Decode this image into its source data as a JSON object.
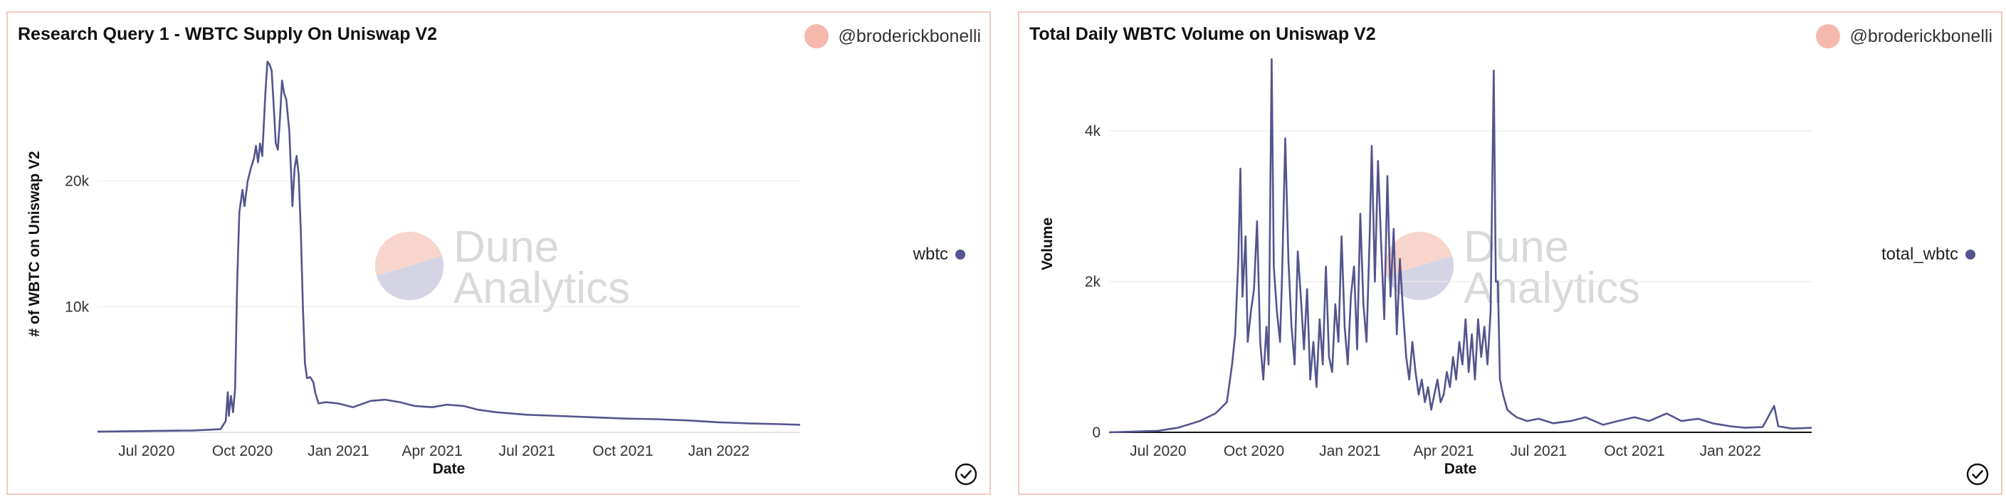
{
  "panels": [
    {
      "title": "Research Query 1 - WBTC Supply On Uniswap V2",
      "author": "@broderickbonelli",
      "watermark": [
        "Dune",
        "Analytics"
      ]
    },
    {
      "title": "Total Daily WBTC Volume on Uniswap V2",
      "author": "@broderickbonelli",
      "watermark": [
        "Dune",
        "Analytics"
      ]
    }
  ],
  "chart_data": [
    {
      "type": "line",
      "xlabel": "Date",
      "ylabel": "# of WBTC on Uniswap V2",
      "x_ticks": [
        "Jul 2020",
        "Oct 2020",
        "Jan 2021",
        "Apr 2021",
        "Jul 2021",
        "Oct 2021",
        "Jan 2022"
      ],
      "y_ticks": [
        "10k",
        "20k"
      ],
      "ylim": [
        0,
        30000
      ],
      "xlim": [
        "2020-05-15",
        "2022-03-20"
      ],
      "grid": true,
      "legend_position": "right",
      "series": [
        {
          "name": "wbtc",
          "color": "#54548e",
          "points": [
            [
              "2020-05-15",
              50
            ],
            [
              "2020-07-01",
              100
            ],
            [
              "2020-08-15",
              150
            ],
            [
              "2020-09-10",
              250
            ],
            [
              "2020-09-15",
              900
            ],
            [
              "2020-09-17",
              3200
            ],
            [
              "2020-09-18",
              1300
            ],
            [
              "2020-09-20",
              2900
            ],
            [
              "2020-09-22",
              1600
            ],
            [
              "2020-09-24",
              3500
            ],
            [
              "2020-09-26",
              12000
            ],
            [
              "2020-09-28",
              17500
            ],
            [
              "2020-10-01",
              19300
            ],
            [
              "2020-10-03",
              18000
            ],
            [
              "2020-10-06",
              20000
            ],
            [
              "2020-10-09",
              21000
            ],
            [
              "2020-10-12",
              21800
            ],
            [
              "2020-10-14",
              22800
            ],
            [
              "2020-10-16",
              21500
            ],
            [
              "2020-10-18",
              23000
            ],
            [
              "2020-10-20",
              22000
            ],
            [
              "2020-10-23",
              27000
            ],
            [
              "2020-10-25",
              29500
            ],
            [
              "2020-10-27",
              29300
            ],
            [
              "2020-10-29",
              28800
            ],
            [
              "2020-10-31",
              26000
            ],
            [
              "2020-11-02",
              23000
            ],
            [
              "2020-11-04",
              22500
            ],
            [
              "2020-11-06",
              25000
            ],
            [
              "2020-11-08",
              28000
            ],
            [
              "2020-11-10",
              27000
            ],
            [
              "2020-11-12",
              26500
            ],
            [
              "2020-11-15",
              24000
            ],
            [
              "2020-11-17",
              20000
            ],
            [
              "2020-11-18",
              18000
            ],
            [
              "2020-11-20",
              21000
            ],
            [
              "2020-11-22",
              22000
            ],
            [
              "2020-11-24",
              20500
            ],
            [
              "2020-11-26",
              16000
            ],
            [
              "2020-11-28",
              10000
            ],
            [
              "2020-11-30",
              5500
            ],
            [
              "2020-12-02",
              4300
            ],
            [
              "2020-12-05",
              4400
            ],
            [
              "2020-12-08",
              4000
            ],
            [
              "2020-12-10",
              3100
            ],
            [
              "2020-12-13",
              2300
            ],
            [
              "2020-12-20",
              2400
            ],
            [
              "2021-01-01",
              2300
            ],
            [
              "2021-01-15",
              2000
            ],
            [
              "2021-02-01",
              2500
            ],
            [
              "2021-02-15",
              2600
            ],
            [
              "2021-03-01",
              2400
            ],
            [
              "2021-03-15",
              2100
            ],
            [
              "2021-04-01",
              2000
            ],
            [
              "2021-04-15",
              2200
            ],
            [
              "2021-05-01",
              2100
            ],
            [
              "2021-05-15",
              1800
            ],
            [
              "2021-06-01",
              1600
            ],
            [
              "2021-07-01",
              1400
            ],
            [
              "2021-08-01",
              1300
            ],
            [
              "2021-09-01",
              1200
            ],
            [
              "2021-10-01",
              1100
            ],
            [
              "2021-11-01",
              1050
            ],
            [
              "2021-12-01",
              950
            ],
            [
              "2022-01-01",
              800
            ],
            [
              "2022-02-01",
              700
            ],
            [
              "2022-03-01",
              650
            ],
            [
              "2022-03-20",
              600
            ]
          ]
        }
      ]
    },
    {
      "type": "line",
      "xlabel": "Date",
      "ylabel": "Volume",
      "x_ticks": [
        "Jul 2020",
        "Oct 2020",
        "Jan 2021",
        "Apr 2021",
        "Jul 2021",
        "Oct 2021",
        "Jan 2022"
      ],
      "y_ticks": [
        "0",
        "2k",
        "4k"
      ],
      "ylim": [
        0,
        5000
      ],
      "xlim": [
        "2020-05-15",
        "2022-03-20"
      ],
      "grid": true,
      "legend_position": "right",
      "series": [
        {
          "name": "total_wbtc",
          "color": "#54548e",
          "points": [
            [
              "2020-05-15",
              0
            ],
            [
              "2020-07-01",
              20
            ],
            [
              "2020-07-20",
              60
            ],
            [
              "2020-08-10",
              150
            ],
            [
              "2020-08-25",
              250
            ],
            [
              "2020-09-05",
              400
            ],
            [
              "2020-09-10",
              900
            ],
            [
              "2020-09-13",
              1300
            ],
            [
              "2020-09-16",
              2300
            ],
            [
              "2020-09-18",
              3500
            ],
            [
              "2020-09-20",
              1800
            ],
            [
              "2020-09-23",
              2600
            ],
            [
              "2020-09-25",
              1200
            ],
            [
              "2020-09-28",
              1600
            ],
            [
              "2020-10-01",
              1900
            ],
            [
              "2020-10-04",
              2800
            ],
            [
              "2020-10-07",
              1200
            ],
            [
              "2020-10-10",
              700
            ],
            [
              "2020-10-13",
              1400
            ],
            [
              "2020-10-15",
              900
            ],
            [
              "2020-10-18",
              4950
            ],
            [
              "2020-10-20",
              2200
            ],
            [
              "2020-10-23",
              1600
            ],
            [
              "2020-10-26",
              1200
            ],
            [
              "2020-10-28",
              2100
            ],
            [
              "2020-10-31",
              3900
            ],
            [
              "2020-11-03",
              2300
            ],
            [
              "2020-11-06",
              1400
            ],
            [
              "2020-11-09",
              900
            ],
            [
              "2020-11-12",
              2400
            ],
            [
              "2020-11-15",
              1800
            ],
            [
              "2020-11-18",
              1100
            ],
            [
              "2020-11-21",
              1900
            ],
            [
              "2020-11-24",
              700
            ],
            [
              "2020-11-27",
              1200
            ],
            [
              "2020-11-30",
              600
            ],
            [
              "2020-12-03",
              1500
            ],
            [
              "2020-12-06",
              900
            ],
            [
              "2020-12-09",
              2200
            ],
            [
              "2020-12-12",
              1000
            ],
            [
              "2020-12-15",
              800
            ],
            [
              "2020-12-18",
              1700
            ],
            [
              "2020-12-21",
              1200
            ],
            [
              "2020-12-24",
              2600
            ],
            [
              "2020-12-27",
              1400
            ],
            [
              "2020-12-30",
              900
            ],
            [
              "2021-01-02",
              1800
            ],
            [
              "2021-01-05",
              2200
            ],
            [
              "2021-01-08",
              1100
            ],
            [
              "2021-01-11",
              2900
            ],
            [
              "2021-01-14",
              1700
            ],
            [
              "2021-01-17",
              1200
            ],
            [
              "2021-01-20",
              2600
            ],
            [
              "2021-01-22",
              3800
            ],
            [
              "2021-01-25",
              2000
            ],
            [
              "2021-01-28",
              3600
            ],
            [
              "2021-01-31",
              2500
            ],
            [
              "2021-02-03",
              1500
            ],
            [
              "2021-02-06",
              3400
            ],
            [
              "2021-02-09",
              1800
            ],
            [
              "2021-02-12",
              2700
            ],
            [
              "2021-02-15",
              1300
            ],
            [
              "2021-02-18",
              2300
            ],
            [
              "2021-02-21",
              1600
            ],
            [
              "2021-02-24",
              1000
            ],
            [
              "2021-02-27",
              700
            ],
            [
              "2021-03-02",
              1200
            ],
            [
              "2021-03-05",
              800
            ],
            [
              "2021-03-08",
              500
            ],
            [
              "2021-03-11",
              700
            ],
            [
              "2021-03-14",
              400
            ],
            [
              "2021-03-17",
              600
            ],
            [
              "2021-03-20",
              300
            ],
            [
              "2021-03-23",
              500
            ],
            [
              "2021-03-26",
              700
            ],
            [
              "2021-03-29",
              400
            ],
            [
              "2021-04-01",
              500
            ],
            [
              "2021-04-04",
              800
            ],
            [
              "2021-04-07",
              600
            ],
            [
              "2021-04-10",
              1000
            ],
            [
              "2021-04-13",
              700
            ],
            [
              "2021-04-16",
              1200
            ],
            [
              "2021-04-19",
              900
            ],
            [
              "2021-04-22",
              1500
            ],
            [
              "2021-04-25",
              800
            ],
            [
              "2021-04-28",
              1300
            ],
            [
              "2021-05-01",
              700
            ],
            [
              "2021-05-04",
              1500
            ],
            [
              "2021-05-07",
              1000
            ],
            [
              "2021-05-10",
              1400
            ],
            [
              "2021-05-13",
              900
            ],
            [
              "2021-05-16",
              1600
            ],
            [
              "2021-05-19",
              4800
            ],
            [
              "2021-05-21",
              2000
            ],
            [
              "2021-05-23",
              2000
            ],
            [
              "2021-05-25",
              700
            ],
            [
              "2021-05-28",
              500
            ],
            [
              "2021-06-01",
              300
            ],
            [
              "2021-06-05",
              250
            ],
            [
              "2021-06-10",
              200
            ],
            [
              "2021-06-20",
              150
            ],
            [
              "2021-07-01",
              180
            ],
            [
              "2021-07-15",
              120
            ],
            [
              "2021-08-01",
              150
            ],
            [
              "2021-08-15",
              200
            ],
            [
              "2021-09-01",
              100
            ],
            [
              "2021-09-15",
              150
            ],
            [
              "2021-10-01",
              200
            ],
            [
              "2021-10-15",
              150
            ],
            [
              "2021-11-01",
              250
            ],
            [
              "2021-11-15",
              150
            ],
            [
              "2021-12-01",
              180
            ],
            [
              "2021-12-15",
              120
            ],
            [
              "2022-01-01",
              80
            ],
            [
              "2022-01-15",
              60
            ],
            [
              "2022-02-01",
              70
            ],
            [
              "2022-02-12",
              350
            ],
            [
              "2022-02-16",
              80
            ],
            [
              "2022-03-01",
              50
            ],
            [
              "2022-03-20",
              60
            ]
          ]
        }
      ]
    }
  ]
}
